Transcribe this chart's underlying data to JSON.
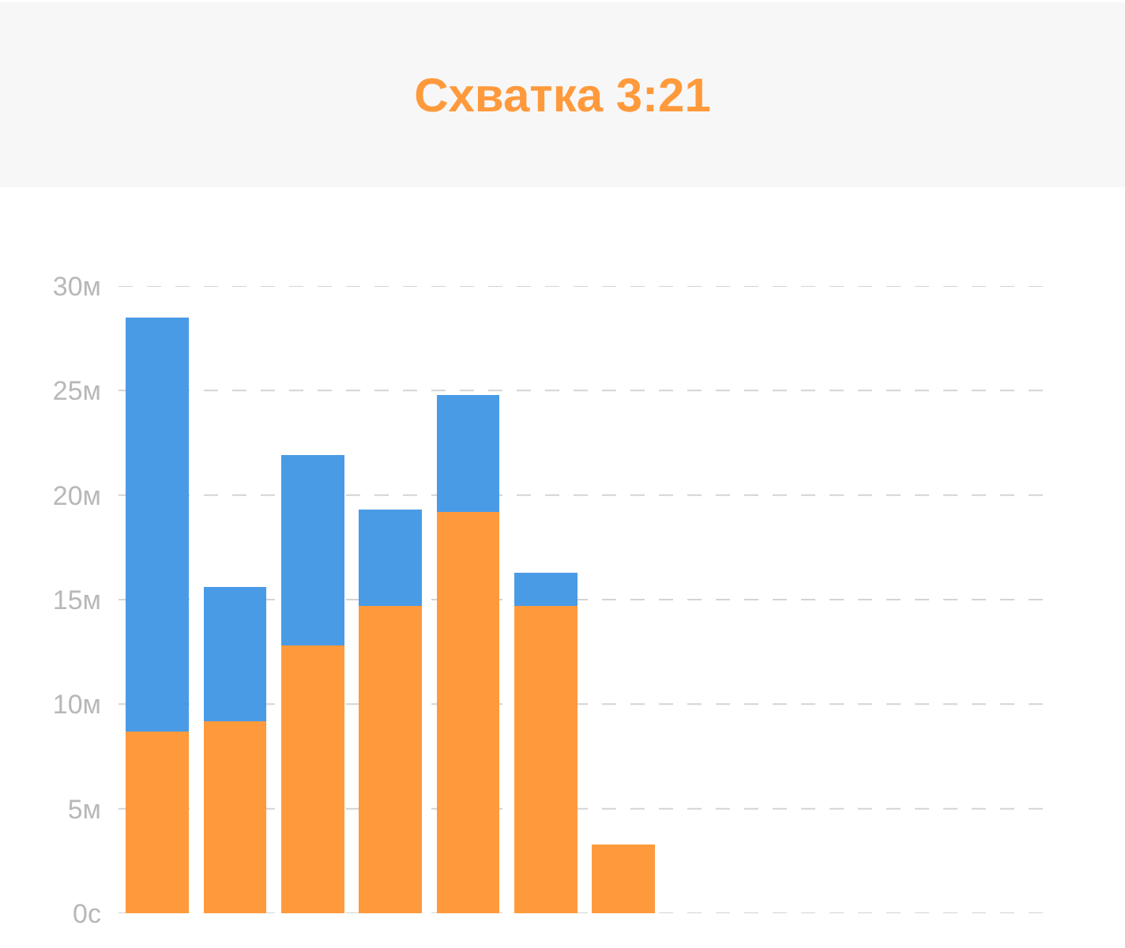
{
  "chart_data": {
    "type": "bar",
    "title": "Схватка 3:21",
    "stacked": true,
    "categories": [
      null,
      null,
      null,
      null,
      null,
      null,
      null,
      null,
      null,
      null,
      null,
      null
    ],
    "series": [
      {
        "color": "#ff9a3c",
        "values": [
          8.7,
          9.2,
          12.8,
          14.7,
          19.2,
          14.7,
          3.3,
          null,
          null,
          null,
          null,
          null
        ]
      },
      {
        "color": "#4a9be6",
        "values": [
          19.8,
          6.4,
          9.1,
          4.6,
          5.6,
          1.6,
          null,
          null,
          null,
          null,
          null,
          null
        ]
      }
    ],
    "ylim": [
      0,
      30
    ],
    "yticks": [
      {
        "value": 0,
        "label": "0с"
      },
      {
        "value": 5,
        "label": "5м"
      },
      {
        "value": 10,
        "label": "10м"
      },
      {
        "value": 15,
        "label": "15м"
      },
      {
        "value": 20,
        "label": "20м"
      },
      {
        "value": 25,
        "label": "25м"
      },
      {
        "value": 30,
        "label": "30м"
      }
    ],
    "tick_labels": "y",
    "grid": "y"
  }
}
